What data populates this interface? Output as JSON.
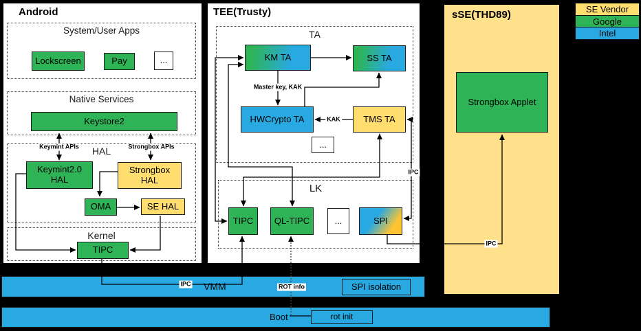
{
  "colors": {
    "google_green": "#2EB457",
    "intel_blue": "#29A9E2",
    "se_vendor_yellow": "#FFDD6E",
    "sse_fill": "#FFE18C"
  },
  "android": {
    "title": "Android",
    "apps_section": {
      "title": "System/User Apps",
      "apps": [
        {
          "label": "Lockscreen",
          "vendor": "google"
        },
        {
          "label": "Pay",
          "vendor": "google"
        },
        {
          "label": "...",
          "vendor": "none"
        }
      ]
    },
    "native_services": {
      "title": "Native Services",
      "keystore2": "Keystore2"
    },
    "hal": {
      "title": "HAL",
      "keymint_apis_label": "Keymint APIs",
      "strongbox_apis_label": "Strongbox APIs",
      "keymint_hal": "Keymint2.0\nHAL",
      "strongbox_hal": "Strongbox\nHAL",
      "oma": "OMA",
      "se_hal": "SE HAL"
    },
    "kernel": {
      "title": "Kernel",
      "tipc": "TIPC"
    }
  },
  "tee": {
    "title": "TEE(Trusty)",
    "ta": {
      "title": "TA",
      "km_ta": "KM TA",
      "ss_ta": "SS TA",
      "hwcrypto_ta": "HWCrypto TA",
      "tms_ta": "TMS TA",
      "more": "...",
      "master_key_label": "Master key, KAK",
      "kak_label": "KAK"
    },
    "lk": {
      "title": "LK",
      "tipc": "TIPC",
      "ql_tipc": "QL-TIPC",
      "more": "...",
      "spi": "SPI"
    },
    "ipc_tms_spi_label": "IPC"
  },
  "sse": {
    "title": "sSE(THD89)",
    "strongbox_applet": "Strongbox Applet",
    "ipc_label": "IPC"
  },
  "legend": {
    "items": [
      {
        "label": "SE Vendor",
        "color": "#FFDD6E"
      },
      {
        "label": "Google",
        "color": "#2EB457"
      },
      {
        "label": "Intel",
        "color": "#29A9E2"
      }
    ]
  },
  "vmm_bar": {
    "label": "VMM",
    "ipc_label": "IPC",
    "spi_isolation": "SPI isolation",
    "rot_info_label": "ROT info"
  },
  "boot_bar": {
    "label": "Boot",
    "rot_init": "rot init"
  }
}
